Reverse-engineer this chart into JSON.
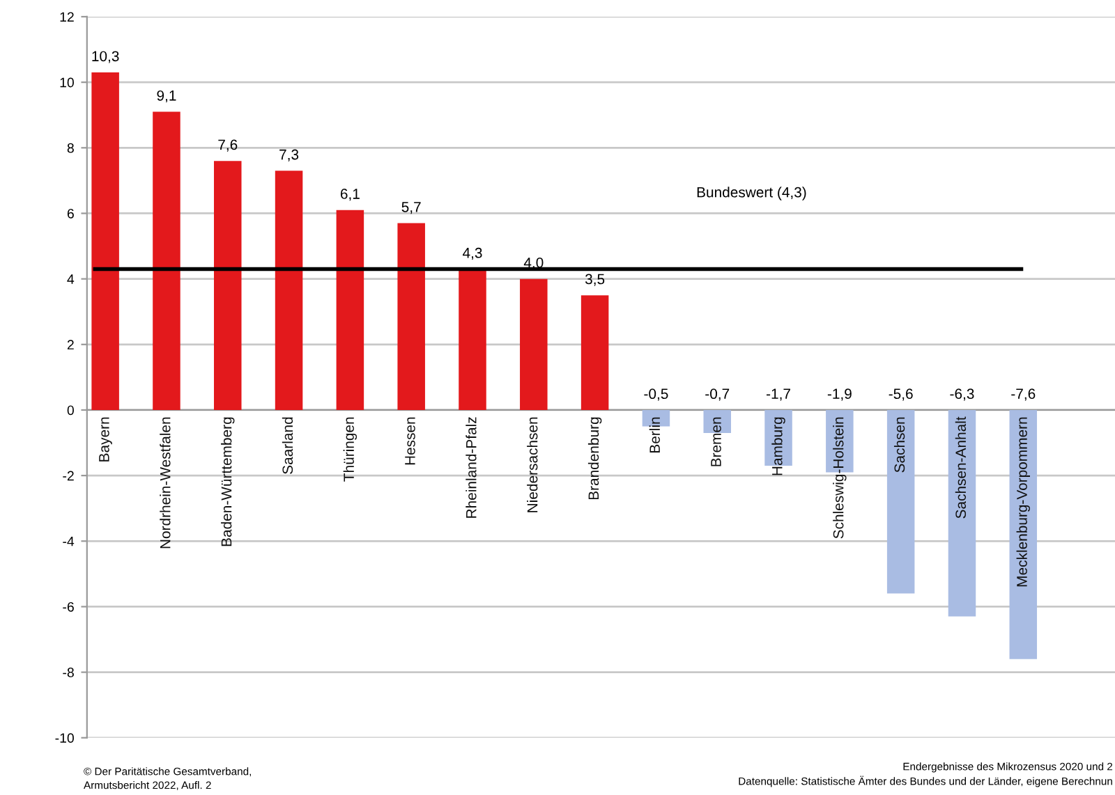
{
  "chart_data": {
    "type": "bar",
    "categories": [
      "Bayern",
      "Nordrhein-Westfalen",
      "Baden-Württemberg",
      "Saarland",
      "Thüringen",
      "Hessen",
      "Rheinland-Pfalz",
      "Niedersachsen",
      "Brandenburg",
      "Berlin",
      "Bremen",
      "Hamburg",
      "Schleswig-Holstein",
      "Sachsen",
      "Sachsen-Anhalt",
      "Mecklenburg-Vorpommern"
    ],
    "values": [
      10.3,
      9.1,
      7.6,
      7.3,
      6.1,
      5.7,
      4.3,
      4.0,
      3.5,
      -0.5,
      -0.7,
      -1.7,
      -1.9,
      -5.6,
      -6.3,
      -7.6
    ],
    "value_labels": [
      "10,3",
      "9,1",
      "7,6",
      "7,3",
      "6,1",
      "5,7",
      "4,3",
      "4,0",
      "3,5",
      "-0,5",
      "-0,7",
      "-1,7",
      "-1,9",
      "-5,6",
      "-6,3",
      "-7,6"
    ],
    "colors": [
      "#e3191c",
      "#e3191c",
      "#e3191c",
      "#e3191c",
      "#e3191c",
      "#e3191c",
      "#e3191c",
      "#e3191c",
      "#e3191c",
      "#a9bce3",
      "#a9bce3",
      "#a9bce3",
      "#a9bce3",
      "#a9bce3",
      "#a9bce3",
      "#a9bce3"
    ],
    "ylim": [
      -10,
      12
    ],
    "yticks": [
      -10,
      -8,
      -6,
      -4,
      -2,
      0,
      2,
      4,
      6,
      8,
      10,
      12
    ],
    "grid": "y",
    "legend": false,
    "ref_lines": [
      {
        "axis": "y",
        "value": 4.3,
        "label": "Bundeswert (4,3)",
        "color": "#000000"
      }
    ],
    "annotations": [
      "© Der Paritätische Gesamtverband,\nArmutsbericht 2022, Aufl. 2",
      "Endergebnisse des Mikrozensus 2020 und 2\nDatenquelle: Statistische Ämter des Bundes und der Länder, eigene Berechnun"
    ]
  }
}
